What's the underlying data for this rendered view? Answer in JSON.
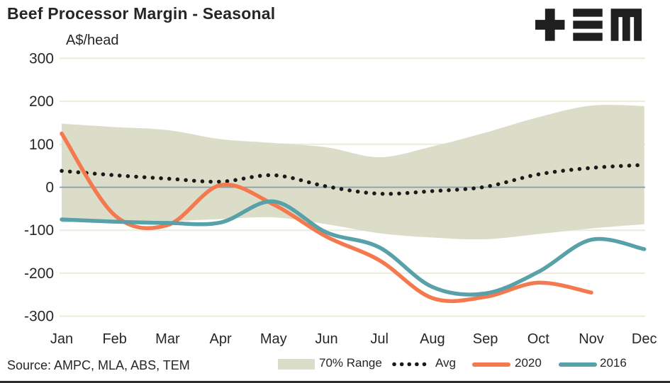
{
  "header": {
    "title": "Beef Processor Margin - Seasonal",
    "logo_name": "tem-logo"
  },
  "footer": {
    "source": "Source: AMPC, MLA, ABS, TEM"
  },
  "colors": {
    "text": "#262626",
    "grid": "#eeebdd",
    "zero_line": "#8d9ca4",
    "band": "#dcddc8",
    "avg": "#1a1a1a",
    "y2020": "#f4794e",
    "y2016": "#58a1a9",
    "logo": "#1f1f1f",
    "footer_bar": "#2b2b2b"
  },
  "chart_data": {
    "type": "line",
    "title": "Beef Processor Margin - Seasonal",
    "ylabel": "A$/head",
    "xlabel": "",
    "ylim": [
      -300,
      300
    ],
    "yticks": [
      300,
      200,
      100,
      0,
      -100,
      -200,
      -300
    ],
    "grid": true,
    "legend_position": "bottom",
    "categories": [
      "Jan",
      "Feb",
      "Mar",
      "Apr",
      "May",
      "Jun",
      "Jul",
      "Aug",
      "Sep",
      "Oct",
      "Nov",
      "Dec"
    ],
    "band": {
      "name": "70% Range",
      "color": "#dcddc8",
      "upper": [
        148,
        140,
        133,
        112,
        103,
        93,
        70,
        95,
        127,
        163,
        190,
        189
      ],
      "lower": [
        -82,
        -77,
        -79,
        -74,
        -70,
        -86,
        -107,
        -117,
        -121,
        -109,
        -96,
        -86
      ]
    },
    "series": [
      {
        "name": "Avg",
        "style": "dotted",
        "color": "#1a1a1a",
        "values": [
          38,
          28,
          20,
          13,
          28,
          2,
          -15,
          -9,
          1,
          30,
          45,
          52
        ]
      },
      {
        "name": "2020",
        "style": "solid",
        "color": "#f4794e",
        "values": [
          125,
          -65,
          -88,
          5,
          -40,
          -115,
          -170,
          -258,
          -255,
          -222,
          -245,
          null
        ]
      },
      {
        "name": "2016",
        "style": "solid",
        "color": "#58a1a9",
        "values": [
          -75,
          -80,
          -83,
          -82,
          -33,
          -105,
          -140,
          -232,
          -247,
          -197,
          -122,
          -144
        ]
      }
    ]
  }
}
